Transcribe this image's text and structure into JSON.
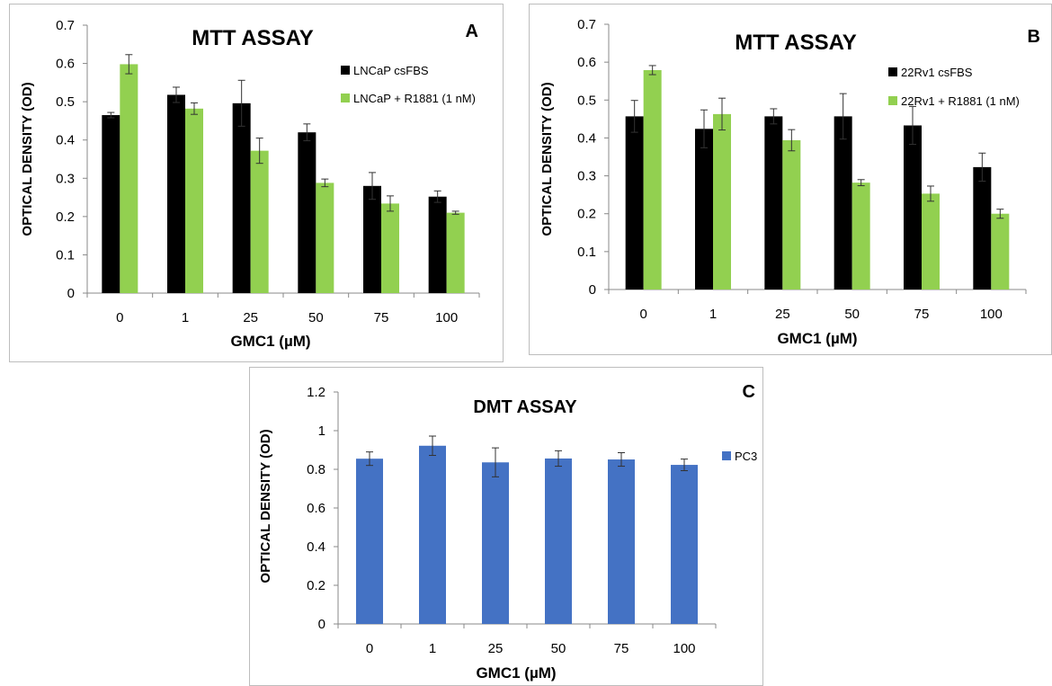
{
  "chart_data": [
    {
      "panel": "A",
      "type": "bar",
      "title": "MTT ASSAY",
      "xlabel": "GMC1 (µM)",
      "ylabel": "OPTICAL DENSITY (OD)",
      "categories": [
        "0",
        "1",
        "25",
        "50",
        "75",
        "100"
      ],
      "ylim": [
        0,
        0.7
      ],
      "yticks": [
        "0",
        "0.1",
        "0.2",
        "0.3",
        "0.4",
        "0.5",
        "0.6",
        "0.7"
      ],
      "legend_position": "top-right",
      "grid": false,
      "series": [
        {
          "name": "LNCaP csFBS",
          "color": "#000000",
          "values": [
            0.465,
            0.518,
            0.496,
            0.42,
            0.28,
            0.252
          ],
          "errors": [
            0.007,
            0.02,
            0.06,
            0.022,
            0.035,
            0.015
          ]
        },
        {
          "name": "LNCaP + R1881 (1 nM)",
          "color": "#92d050",
          "values": [
            0.598,
            0.482,
            0.372,
            0.288,
            0.234,
            0.21
          ],
          "errors": [
            0.025,
            0.015,
            0.033,
            0.01,
            0.02,
            0.004
          ]
        }
      ]
    },
    {
      "panel": "B",
      "type": "bar",
      "title": "MTT ASSAY",
      "xlabel": "GMC1 (µM)",
      "ylabel": "OPTICAL DENSITY (OD)",
      "categories": [
        "0",
        "1",
        "25",
        "50",
        "75",
        "100"
      ],
      "ylim": [
        0,
        0.7
      ],
      "yticks": [
        "0",
        "0.1",
        "0.2",
        "0.3",
        "0.4",
        "0.5",
        "0.6",
        "0.7"
      ],
      "legend_position": "top-right",
      "grid": false,
      "series": [
        {
          "name": "22Rv1 csFBS",
          "color": "#000000",
          "values": [
            0.457,
            0.424,
            0.457,
            0.457,
            0.433,
            0.323
          ],
          "errors": [
            0.042,
            0.05,
            0.02,
            0.06,
            0.05,
            0.037
          ]
        },
        {
          "name": "22Rv1 + R1881 (1 nM)",
          "color": "#92d050",
          "values": [
            0.579,
            0.463,
            0.394,
            0.282,
            0.253,
            0.2
          ],
          "errors": [
            0.012,
            0.042,
            0.028,
            0.008,
            0.02,
            0.012
          ]
        }
      ]
    },
    {
      "panel": "C",
      "type": "bar",
      "title": "DMT ASSAY",
      "xlabel": "GMC1 (µM)",
      "ylabel": "OPTICAL DENSITY (OD)",
      "categories": [
        "0",
        "1",
        "25",
        "50",
        "75",
        "100"
      ],
      "ylim": [
        0,
        1.2
      ],
      "yticks": [
        "0",
        "0.2",
        "0.4",
        "0.6",
        "0.8",
        "1",
        "1.2"
      ],
      "legend_position": "right",
      "grid": false,
      "series": [
        {
          "name": "PC3",
          "color": "#4472c4",
          "values": [
            0.855,
            0.922,
            0.836,
            0.856,
            0.851,
            0.823
          ],
          "errors": [
            0.035,
            0.05,
            0.075,
            0.04,
            0.035,
            0.03
          ]
        }
      ]
    }
  ]
}
